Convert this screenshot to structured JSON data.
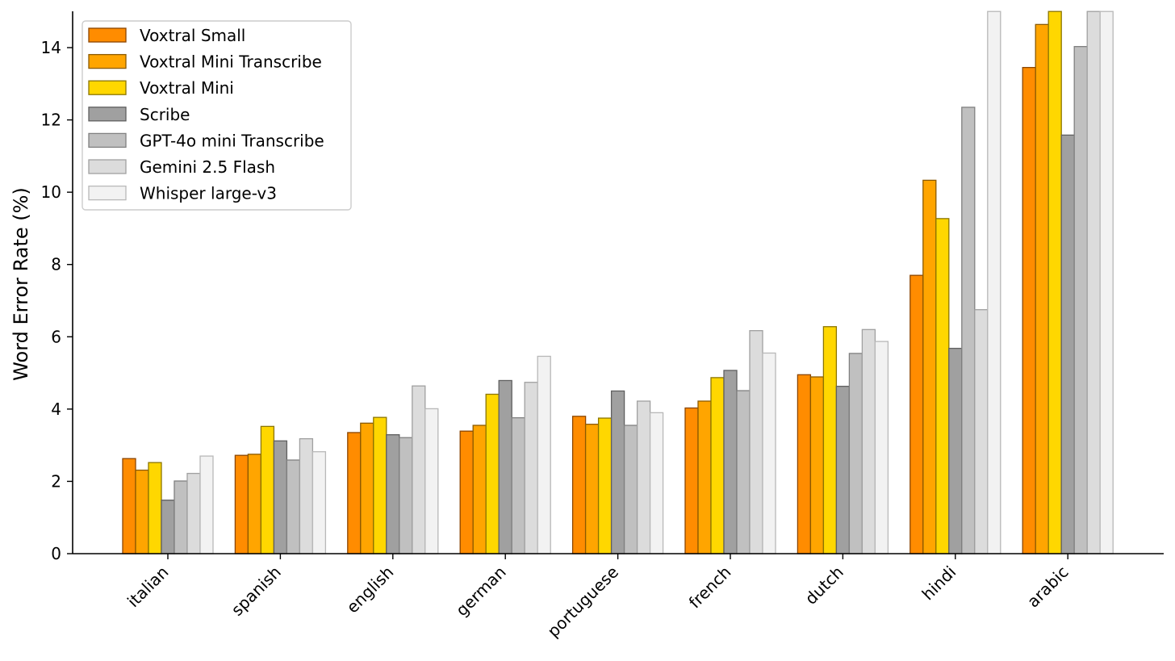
{
  "chart_data": {
    "type": "bar",
    "xlabel": "",
    "ylabel": "Word Error Rate (%)",
    "ylim": [
      0,
      15
    ],
    "yticks": [
      0,
      2,
      4,
      6,
      8,
      10,
      12,
      14
    ],
    "grid": false,
    "legend_position": "top-left",
    "categories": [
      "italian",
      "spanish",
      "english",
      "german",
      "portuguese",
      "french",
      "dutch",
      "hindi",
      "arabic"
    ],
    "series": [
      {
        "name": "Voxtral Small",
        "color": "#ff8c00",
        "edge": "#8b4500",
        "values": [
          2.63,
          2.72,
          3.35,
          3.39,
          3.8,
          4.03,
          4.95,
          7.7,
          13.45
        ]
      },
      {
        "name": "Voxtral Mini Transcribe",
        "color": "#ffa500",
        "edge": "#8b5a00",
        "values": [
          2.31,
          2.75,
          3.61,
          3.55,
          3.58,
          4.22,
          4.89,
          10.33,
          14.64
        ]
      },
      {
        "name": "Voxtral Mini",
        "color": "#ffd700",
        "edge": "#8b7500",
        "values": [
          2.52,
          3.52,
          3.77,
          4.41,
          3.75,
          4.87,
          6.28,
          9.27,
          15.5
        ]
      },
      {
        "name": "Scribe",
        "color": "#a0a0a0",
        "edge": "#606060",
        "values": [
          1.48,
          3.12,
          3.29,
          4.79,
          4.5,
          5.07,
          4.63,
          5.68,
          11.58
        ]
      },
      {
        "name": "GPT-4o mini Transcribe",
        "color": "#c0c0c0",
        "edge": "#808080",
        "values": [
          2.01,
          2.59,
          3.21,
          3.76,
          3.55,
          4.51,
          5.54,
          12.35,
          14.03
        ]
      },
      {
        "name": "Gemini 2.5 Flash",
        "color": "#dcdcdc",
        "edge": "#a0a0a0",
        "values": [
          2.22,
          3.18,
          4.64,
          4.74,
          4.22,
          6.17,
          6.2,
          6.75,
          15.5
        ]
      },
      {
        "name": "Whisper large-v3",
        "color": "#f2f2f2",
        "edge": "#b8b8b8",
        "values": [
          2.7,
          2.82,
          4.01,
          5.46,
          3.9,
          5.55,
          5.87,
          15.5,
          15.5
        ]
      }
    ]
  }
}
